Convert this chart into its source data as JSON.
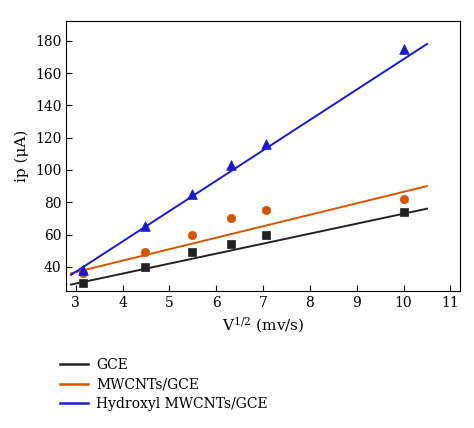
{
  "title": "",
  "xlim": [
    2.8,
    11.2
  ],
  "ylim": [
    25,
    192
  ],
  "xticks": [
    3,
    4,
    5,
    6,
    7,
    8,
    9,
    10,
    11
  ],
  "yticks": [
    40,
    60,
    80,
    100,
    120,
    140,
    160,
    180
  ],
  "gce": {
    "scatter_x": [
      3.16,
      4.47,
      5.48,
      6.32,
      7.07,
      10.0
    ],
    "scatter_y": [
      30,
      40,
      49,
      54,
      60,
      74
    ],
    "line_x": [
      2.9,
      10.5
    ],
    "line_y": [
      29,
      76
    ],
    "color": "#222222",
    "marker": "s",
    "markersize": 6,
    "label": "GCE",
    "linewidth": 1.4
  },
  "mwcnts": {
    "scatter_x": [
      3.16,
      4.47,
      5.48,
      6.32,
      7.07,
      10.0
    ],
    "scatter_y": [
      36,
      49,
      60,
      70,
      75,
      82
    ],
    "line_x": [
      2.9,
      10.5
    ],
    "line_y": [
      36,
      90
    ],
    "color": "#d45500",
    "marker": "o",
    "markersize": 6,
    "label": "MWCNTs/GCE",
    "linewidth": 1.4
  },
  "hydroxyl": {
    "scatter_x": [
      3.16,
      4.47,
      5.48,
      6.32,
      7.07,
      10.0
    ],
    "scatter_y": [
      38,
      65,
      85,
      103,
      116,
      175
    ],
    "line_x": [
      2.9,
      10.5
    ],
    "line_y": [
      35,
      178
    ],
    "color": "#1a1acc",
    "marker": "^",
    "markersize": 7,
    "label": "Hydroxyl MWCNTs/GCE",
    "linewidth": 1.4
  },
  "background_color": "#ffffff",
  "font_family": "serif",
  "font_size": 11,
  "tick_font_size": 10,
  "ylabel": "ip (μA)",
  "xlabel": "V$^{1/2}$ (mv/s)"
}
